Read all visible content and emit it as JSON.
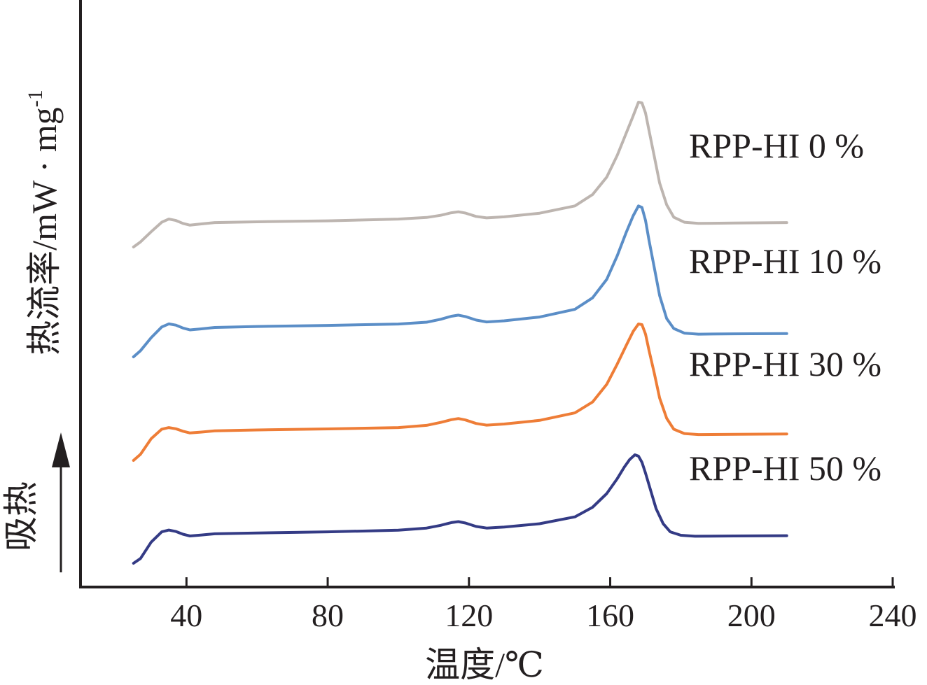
{
  "chart_data": {
    "type": "line",
    "xlabel": "温度/℃",
    "ylabel": "热流率/mW · mg",
    "ylabel_superscript": "-1",
    "endotherm_label": "吸热",
    "x_ticks": [
      "40",
      "80",
      "120",
      "160",
      "200",
      "240"
    ],
    "xlim": [
      10,
      240
    ],
    "y_units_hidden": true,
    "grid": false,
    "legend": "inline labels at right of each curve",
    "series": [
      {
        "name": "RPP-HI 0 %",
        "color": "#bdb5b0",
        "x": [
          25,
          27,
          30,
          33,
          35,
          37,
          39,
          41,
          44,
          48,
          60,
          80,
          100,
          108,
          112,
          115,
          117,
          119,
          122,
          125,
          130,
          140,
          150,
          155,
          159,
          162,
          164.5,
          166.5,
          168,
          169,
          170,
          171,
          172.5,
          174,
          176,
          178,
          181,
          185,
          195,
          210
        ],
        "y": [
          0.0,
          0.35,
          1.05,
          1.7,
          1.92,
          1.82,
          1.62,
          1.5,
          1.58,
          1.68,
          1.73,
          1.8,
          1.92,
          2.03,
          2.18,
          2.35,
          2.42,
          2.33,
          2.1,
          2.0,
          2.07,
          2.32,
          2.82,
          3.6,
          4.8,
          6.3,
          7.8,
          9.0,
          9.95,
          9.9,
          9.2,
          8.0,
          6.2,
          4.4,
          2.9,
          2.05,
          1.7,
          1.62,
          1.65,
          1.68
        ]
      },
      {
        "name": "RPP-HI 10 %",
        "color": "#5b8ec7",
        "x": [
          25,
          27,
          30,
          33,
          35,
          37,
          39,
          41,
          44,
          48,
          60,
          80,
          100,
          108,
          112,
          115,
          117,
          119,
          122,
          125,
          130,
          140,
          150,
          155,
          159,
          162,
          164.5,
          166.5,
          168,
          169,
          170,
          171,
          172.5,
          174,
          176,
          178,
          181,
          185,
          195,
          210
        ],
        "y": [
          0.0,
          0.4,
          1.25,
          1.95,
          2.15,
          2.07,
          1.88,
          1.76,
          1.82,
          1.92,
          1.98,
          2.05,
          2.14,
          2.26,
          2.45,
          2.65,
          2.72,
          2.63,
          2.4,
          2.28,
          2.35,
          2.6,
          3.1,
          3.85,
          5.05,
          6.6,
          8.1,
          9.2,
          9.85,
          9.75,
          8.9,
          7.6,
          5.8,
          4.0,
          2.5,
          1.85,
          1.55,
          1.48,
          1.5,
          1.52
        ]
      },
      {
        "name": "RPP-HI 30 %",
        "color": "#ee7d37",
        "x": [
          25,
          27,
          30,
          33,
          35,
          37,
          39,
          41,
          44,
          48,
          60,
          80,
          100,
          108,
          112,
          115,
          117,
          119,
          122,
          125,
          130,
          140,
          150,
          155,
          159,
          162,
          164.5,
          166.5,
          168,
          169,
          170,
          171,
          172.5,
          174,
          176,
          178,
          181,
          185,
          195,
          210
        ],
        "y": [
          0.0,
          0.45,
          1.6,
          2.3,
          2.42,
          2.33,
          2.15,
          2.02,
          2.08,
          2.18,
          2.24,
          2.32,
          2.42,
          2.58,
          2.8,
          3.0,
          3.08,
          2.98,
          2.72,
          2.6,
          2.68,
          2.95,
          3.5,
          4.3,
          5.6,
          7.1,
          8.45,
          9.5,
          10.05,
          10.0,
          9.3,
          8.1,
          6.4,
          4.6,
          3.1,
          2.3,
          1.98,
          1.9,
          1.92,
          1.95
        ]
      },
      {
        "name": "RPP-HI 50 %",
        "color": "#343b85",
        "x": [
          25,
          27,
          30,
          33,
          35,
          37,
          39,
          41,
          44,
          48,
          60,
          80,
          100,
          108,
          112,
          115,
          117,
          119,
          122,
          125,
          130,
          140,
          150,
          155,
          159,
          162,
          164,
          165.5,
          167,
          168,
          169,
          170,
          171.5,
          173,
          175,
          177,
          180,
          184,
          195,
          210
        ],
        "y": [
          0.0,
          0.35,
          1.55,
          2.3,
          2.43,
          2.33,
          2.13,
          2.0,
          2.06,
          2.16,
          2.22,
          2.3,
          2.42,
          2.58,
          2.78,
          2.98,
          3.05,
          2.95,
          2.7,
          2.58,
          2.65,
          2.9,
          3.4,
          4.1,
          5.1,
          6.2,
          7.05,
          7.6,
          7.95,
          7.85,
          7.4,
          6.6,
          5.3,
          4.0,
          2.9,
          2.3,
          2.05,
          1.98,
          2.0,
          2.02
        ]
      }
    ]
  }
}
